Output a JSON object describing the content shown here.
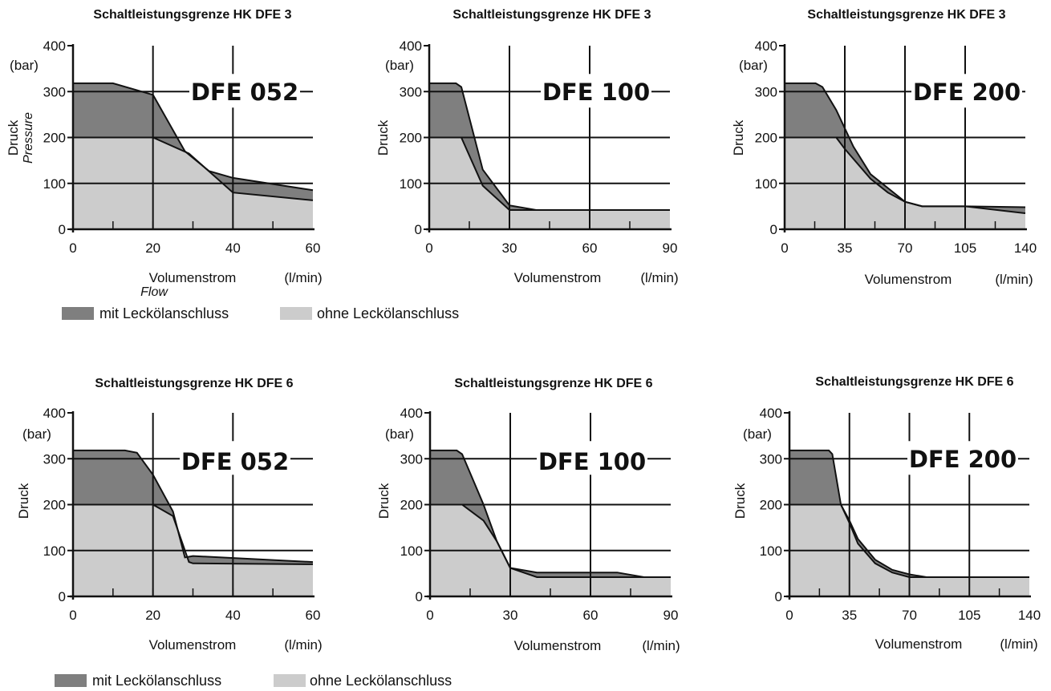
{
  "legend": [
    {
      "label": "mit Leckölanschluss",
      "color": "#7f7f7f"
    },
    {
      "label": "ohne Leckölanschluss",
      "color": "#cccccc"
    }
  ],
  "chart_data": [
    {
      "type": "area",
      "title": "Schaltleistungsgrenze HK DFE 3",
      "model": "DFE 052",
      "ylabel": "Druck",
      "ylabel_sub": "Pressure",
      "yunit": "(bar)",
      "xlabel": "Volumenstrom",
      "xlabel_sub": "Flow",
      "xunit": "(l/min)",
      "ylim": [
        0,
        400
      ],
      "xlim": [
        0,
        60
      ],
      "xticks": [
        0,
        20,
        40,
        60
      ],
      "yticks": [
        0,
        100,
        200,
        300,
        400
      ],
      "series": [
        {
          "name": "mit Leckölanschluss",
          "color": "#7f7f7f",
          "x": [
            0,
            10,
            20,
            28,
            34,
            40,
            60
          ],
          "y": [
            318,
            318,
            293,
            170,
            127,
            112,
            85
          ]
        },
        {
          "name": "ohne Leckölanschluss",
          "color": "#cccccc",
          "x": [
            0,
            20,
            29,
            40,
            60
          ],
          "y": [
            200,
            200,
            165,
            80,
            63
          ]
        }
      ]
    },
    {
      "type": "area",
      "title": "Schaltleistungsgrenze HK DFE 3",
      "model": "DFE 100",
      "ylabel": "Druck",
      "yunit": "(bar)",
      "xlabel": "Volumenstrom",
      "xunit": "(l/min)",
      "ylim": [
        0,
        400
      ],
      "xlim": [
        0,
        90
      ],
      "xticks": [
        0,
        30,
        60,
        90
      ],
      "yticks": [
        0,
        100,
        200,
        300,
        400
      ],
      "series": [
        {
          "name": "mit Leckölanschluss",
          "color": "#7f7f7f",
          "x": [
            0,
            10,
            12,
            20,
            30,
            40,
            90
          ],
          "y": [
            318,
            318,
            310,
            130,
            52,
            42,
            42
          ]
        },
        {
          "name": "ohne Leckölanschluss",
          "color": "#cccccc",
          "x": [
            0,
            12,
            20,
            30,
            90
          ],
          "y": [
            200,
            200,
            95,
            42,
            42
          ]
        }
      ]
    },
    {
      "type": "area",
      "title": "Schaltleistungsgrenze HK DFE 3",
      "model": "DFE 200",
      "ylabel": "Druck",
      "yunit": "(bar)",
      "xlabel": "Volumenstrom",
      "xunit": "(l/min)",
      "ylim": [
        0,
        400
      ],
      "xlim": [
        0,
        140
      ],
      "xticks": [
        0,
        35,
        70,
        105,
        140
      ],
      "yticks": [
        0,
        100,
        200,
        300,
        400
      ],
      "series": [
        {
          "name": "mit Leckölanschluss",
          "color": "#7f7f7f",
          "x": [
            0,
            18,
            22,
            30,
            40,
            50,
            60,
            70,
            80,
            105,
            140
          ],
          "y": [
            318,
            318,
            310,
            260,
            180,
            120,
            90,
            60,
            50,
            50,
            48
          ]
        },
        {
          "name": "ohne Leckölanschluss",
          "color": "#cccccc",
          "x": [
            0,
            30,
            35,
            50,
            60,
            70,
            80,
            105,
            140
          ],
          "y": [
            200,
            200,
            175,
            110,
            80,
            60,
            50,
            50,
            35
          ]
        }
      ]
    },
    {
      "type": "area",
      "title": "Schaltleistungsgrenze HK DFE 6",
      "model": "DFE 052",
      "ylabel": "Druck",
      "yunit": "(bar)",
      "xlabel": "Volumenstrom",
      "xunit": "(l/min)",
      "ylim": [
        0,
        400
      ],
      "xlim": [
        0,
        60
      ],
      "xticks": [
        0,
        20,
        40,
        60
      ],
      "yticks": [
        0,
        100,
        200,
        300,
        400
      ],
      "series": [
        {
          "name": "mit Leckölanschluss",
          "color": "#7f7f7f",
          "x": [
            0,
            13,
            16,
            20,
            25,
            28,
            30,
            60
          ],
          "y": [
            318,
            318,
            313,
            265,
            185,
            85,
            88,
            75
          ]
        },
        {
          "name": "ohne Leckölanschluss",
          "color": "#cccccc",
          "x": [
            0,
            20,
            25,
            29,
            30,
            60
          ],
          "y": [
            200,
            200,
            175,
            75,
            72,
            70
          ]
        }
      ]
    },
    {
      "type": "area",
      "title": "Schaltleistungsgrenze HK DFE 6",
      "model": "DFE 100",
      "ylabel": "Druck",
      "yunit": "(bar)",
      "xlabel": "Volumenstrom",
      "xunit": "(l/min)",
      "ylim": [
        0,
        400
      ],
      "xlim": [
        0,
        90
      ],
      "xticks": [
        0,
        30,
        60,
        90
      ],
      "yticks": [
        0,
        100,
        200,
        300,
        400
      ],
      "series": [
        {
          "name": "mit Leckölanschluss",
          "color": "#7f7f7f",
          "x": [
            0,
            10,
            12,
            20,
            25,
            30,
            40,
            70,
            80,
            90
          ],
          "y": [
            318,
            318,
            310,
            200,
            120,
            62,
            52,
            52,
            42,
            42
          ]
        },
        {
          "name": "ohne Leckölanschluss",
          "color": "#cccccc",
          "x": [
            0,
            12,
            20,
            25,
            30,
            40,
            90
          ],
          "y": [
            200,
            200,
            165,
            120,
            62,
            42,
            42
          ]
        }
      ]
    },
    {
      "type": "area",
      "title": "Schaltleistungsgrenze HK DFE 6",
      "model": "DFE 200",
      "ylabel": "Druck",
      "yunit": "(bar)",
      "xlabel": "Volumenstrom",
      "xunit": "(l/min)",
      "ylim": [
        0,
        400
      ],
      "xlim": [
        0,
        140
      ],
      "xticks": [
        0,
        35,
        70,
        105,
        140
      ],
      "yticks": [
        0,
        100,
        200,
        300,
        400
      ],
      "series": [
        {
          "name": "mit Leckölanschluss",
          "color": "#7f7f7f",
          "x": [
            0,
            23,
            25,
            30,
            35,
            40,
            50,
            60,
            70,
            80,
            140
          ],
          "y": [
            318,
            318,
            310,
            200,
            165,
            125,
            80,
            58,
            48,
            42,
            42
          ]
        },
        {
          "name": "ohne Leckölanschluss",
          "color": "#cccccc",
          "x": [
            0,
            30,
            35,
            40,
            50,
            60,
            70,
            140
          ],
          "y": [
            200,
            200,
            160,
            115,
            72,
            52,
            42,
            42
          ]
        }
      ]
    }
  ]
}
